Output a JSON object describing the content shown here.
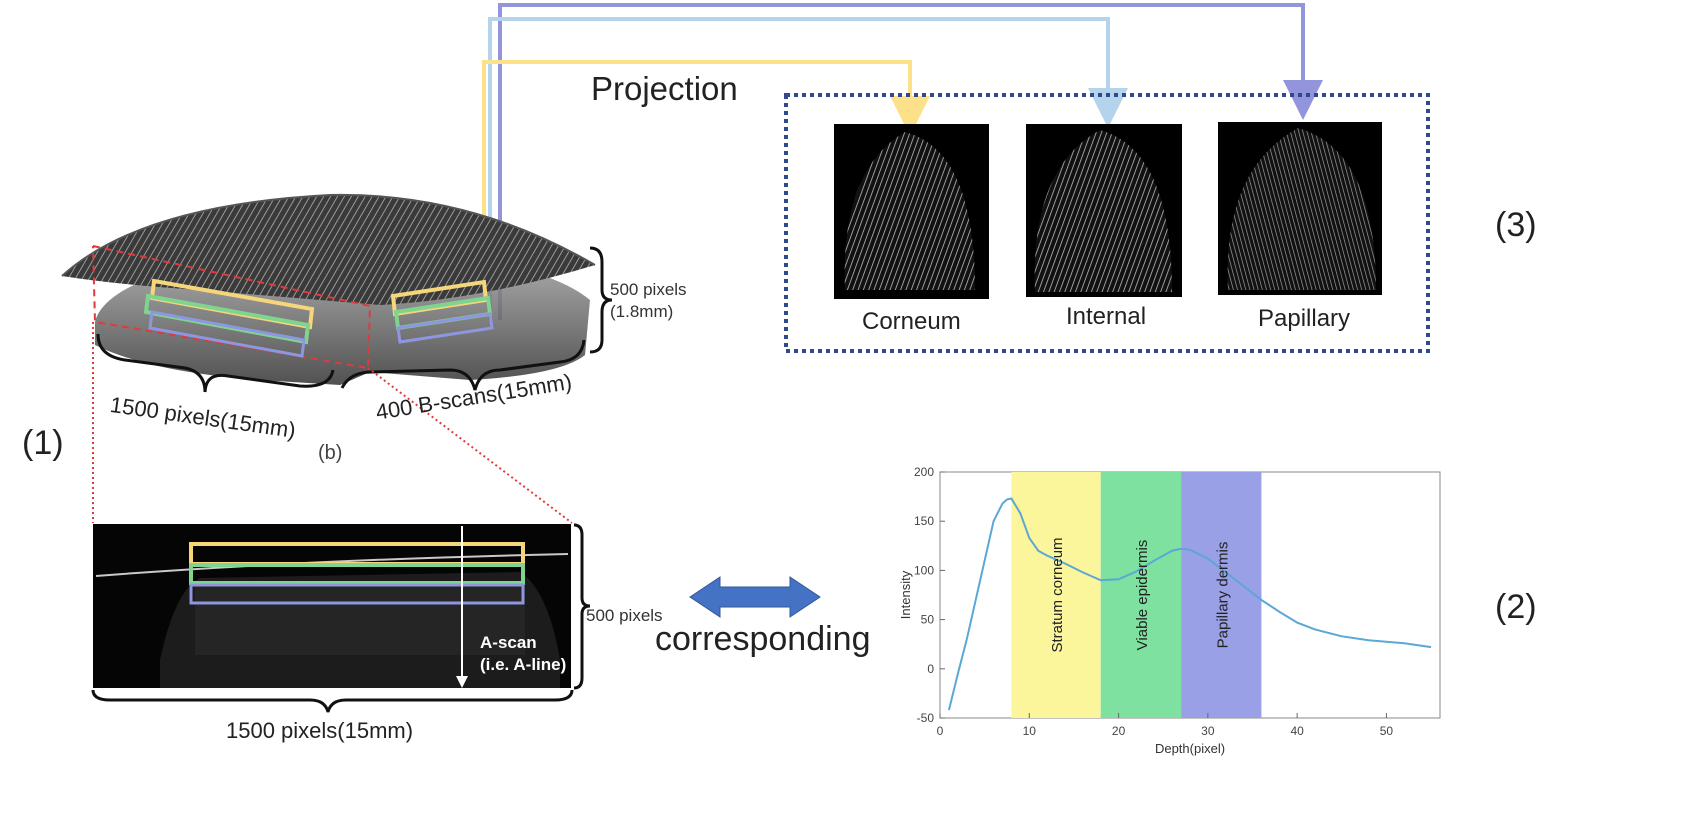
{
  "labels": {
    "panel1": "(1)",
    "panel2": "(2)",
    "panel3": "(3)",
    "sub_b": "(b)",
    "projection": "Projection",
    "corresponding": "corresponding",
    "depth_3d": "500 pixels",
    "depth_3d_mm": "(1.8mm)",
    "width_3d": "1500 pixels(15mm)",
    "bscans_3d": "400 B-scans(15mm)",
    "depth_bscan": "500 pixels",
    "width_bscan": "1500 pixels(15mm)",
    "ascan_line1": "A-scan",
    "ascan_line2": "(i.e. A-line)"
  },
  "fingerprints": [
    {
      "label": "Corneum"
    },
    {
      "label": "Internal"
    },
    {
      "label": "Papillary"
    }
  ],
  "colors": {
    "corneum": "#f5d67a",
    "internal": "#7fd48f",
    "papillary": "#8f96e0",
    "arrow_yellow": "#fde08a",
    "arrow_lightblue": "#b5d4ec",
    "arrow_purple": "#9295dc",
    "dash_box": "#2e4a8c",
    "double_arrow": "#4472c4",
    "red_dash": "#e03a3a"
  },
  "chart_data": {
    "type": "line",
    "xlabel": "Depth(pixel)",
    "ylabel": "Intensity",
    "xlim": [
      0,
      56
    ],
    "ylim": [
      -50,
      200
    ],
    "xticks": [
      0,
      10,
      20,
      30,
      40,
      50
    ],
    "yticks": [
      -50,
      0,
      50,
      100,
      150,
      200
    ],
    "x": [
      1,
      2,
      3,
      4,
      5,
      6,
      7,
      7.5,
      8,
      9,
      10,
      11,
      12,
      14,
      16,
      18,
      20,
      22,
      24,
      26,
      27,
      28,
      30,
      32,
      34,
      36,
      38,
      40,
      42,
      45,
      48,
      52,
      55
    ],
    "y": [
      -42,
      -5,
      30,
      70,
      110,
      150,
      168,
      172,
      173,
      158,
      133,
      120,
      115,
      107,
      98,
      90,
      91,
      99,
      110,
      120,
      122,
      121,
      112,
      98,
      84,
      70,
      58,
      47,
      40,
      33,
      29,
      26,
      22
    ],
    "bands": [
      {
        "label": "Stratum corneum",
        "from": 8,
        "to": 18,
        "color": "#fbf59c"
      },
      {
        "label": "Viable epidermis",
        "from": 18,
        "to": 27,
        "color": "#7fe1a0"
      },
      {
        "label": "Papillary dermis",
        "from": 27,
        "to": 36,
        "color": "#9aa0e6"
      }
    ],
    "line_color": "#5ba7d6"
  }
}
